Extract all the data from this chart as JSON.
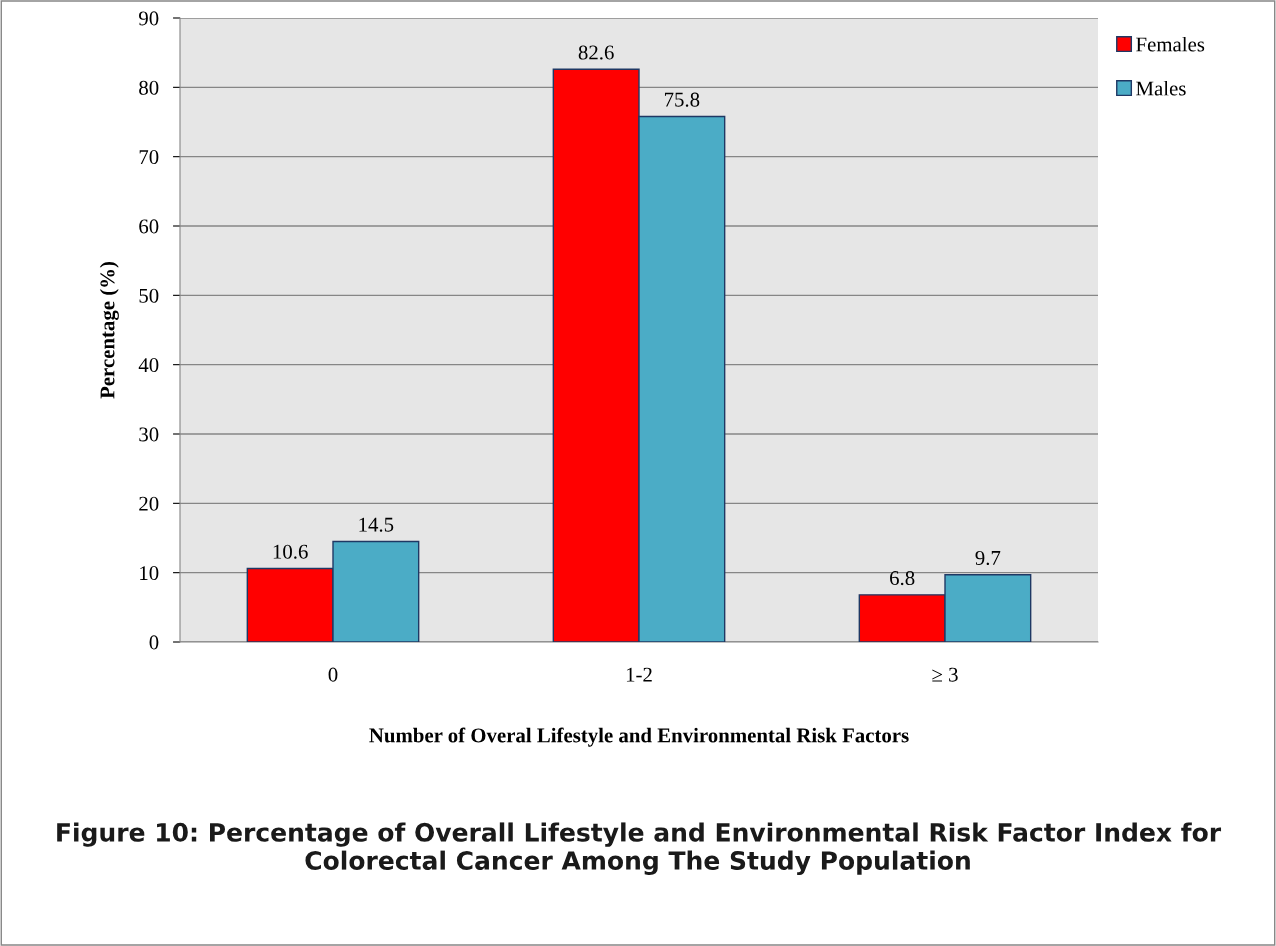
{
  "chart_data": {
    "type": "bar",
    "title": "Figure 10: Percentage of Overall Lifestyle and Environmental Risk Factor Index for Colorectal Cancer Among The Study Population",
    "xlabel": "Number of Overal Lifestyle and Environmental Risk Factors",
    "ylabel": "Percentage (%)",
    "categories": [
      "0",
      "1-2",
      "≥ 3"
    ],
    "series": [
      {
        "name": "Females",
        "color": "#ff0000",
        "values": [
          10.6,
          82.6,
          6.8
        ]
      },
      {
        "name": "Males",
        "color": "#4bacc6",
        "values": [
          14.5,
          75.8,
          9.7
        ]
      }
    ],
    "ylim": [
      0,
      90
    ],
    "yticks": [
      0,
      10,
      20,
      30,
      40,
      50,
      60,
      70,
      80,
      90
    ],
    "grid": "y",
    "legend": "top right",
    "data_labels": true
  }
}
